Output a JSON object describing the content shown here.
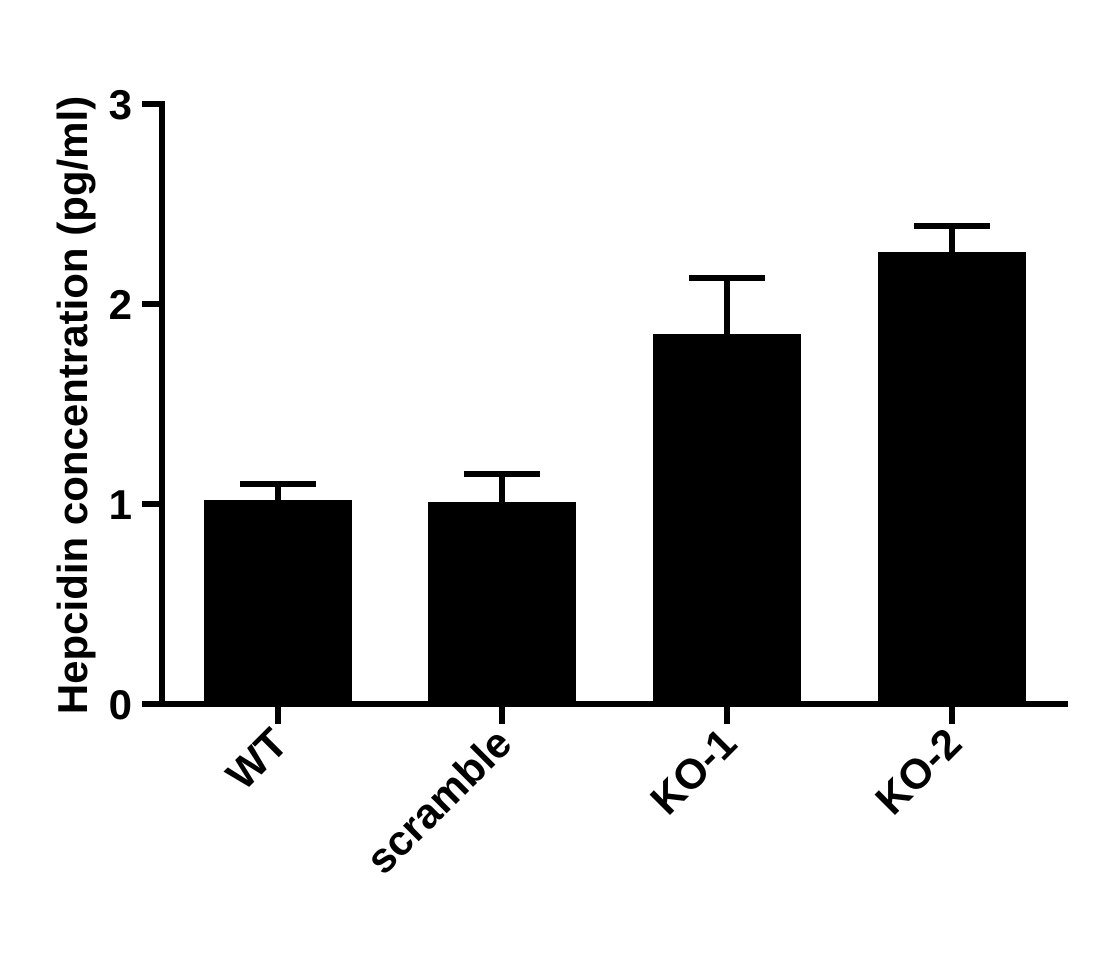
{
  "chart_data": {
    "type": "bar",
    "title": "",
    "xlabel": "",
    "ylabel": "Hepcidin concentration (pg/ml)",
    "categories": [
      "WT",
      "scramble",
      "KO-1",
      "KO-2"
    ],
    "values": [
      1.02,
      1.01,
      1.85,
      2.26
    ],
    "error_upper": [
      0.08,
      0.14,
      0.28,
      0.13
    ],
    "ylim": [
      0,
      3
    ],
    "yticks": [
      "0",
      "1",
      "2",
      "3"
    ],
    "ytick_values": [
      0,
      1,
      2,
      3
    ],
    "grid": false,
    "legend": "none",
    "bar_color": "#000000",
    "error_bar_color": "#000000",
    "axis_color": "#000000"
  }
}
